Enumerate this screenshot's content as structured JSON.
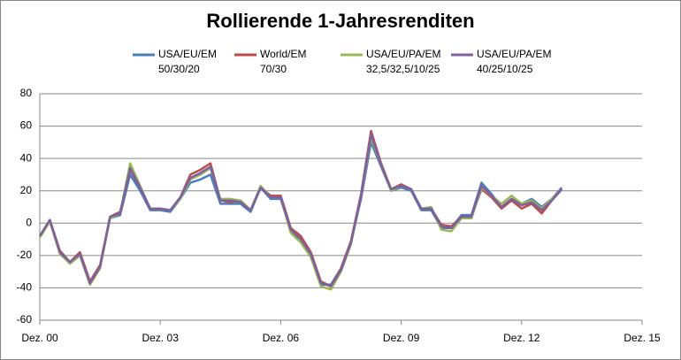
{
  "chart_data": {
    "type": "line",
    "title": "Rollierende 1-Jahresrenditen",
    "categories": [
      "Dez. 00",
      null,
      null,
      null,
      null,
      null,
      null,
      null,
      null,
      null,
      null,
      null,
      "Dez. 03",
      null,
      null,
      null,
      null,
      null,
      null,
      null,
      null,
      null,
      null,
      null,
      "Dez. 06",
      null,
      null,
      null,
      null,
      null,
      null,
      null,
      null,
      null,
      null,
      null,
      "Dez. 09",
      null,
      null,
      null,
      null,
      null,
      null,
      null,
      null,
      null,
      null,
      null,
      "Dez. 12",
      null,
      null,
      null,
      null,
      null,
      null,
      null,
      null,
      null,
      null,
      null,
      "Dez. 15"
    ],
    "series": [
      {
        "name": "USA/EU/EM\n50/30/20",
        "color": "#4a7ebb",
        "values": [
          -8,
          1,
          -18,
          -25,
          -20,
          -38,
          -27,
          3,
          5,
          30,
          20,
          8,
          8,
          7,
          15,
          25,
          27,
          30,
          12,
          12,
          12,
          7,
          22,
          15,
          15,
          -5,
          -10,
          -20,
          -38,
          -38,
          -28,
          -12,
          15,
          50,
          35,
          20,
          22,
          20,
          8,
          8,
          -3,
          -3,
          5,
          5,
          25,
          18,
          10,
          15,
          12,
          15,
          10,
          15,
          22,
          null,
          null,
          null,
          null,
          null,
          null,
          null,
          null
        ]
      },
      {
        "name": "World/EM\n70/30",
        "color": "#be4b48",
        "values": [
          -8,
          2,
          -17,
          -24,
          -18,
          -36,
          -26,
          4,
          7,
          33,
          22,
          9,
          9,
          8,
          16,
          30,
          33,
          37,
          14,
          13,
          14,
          8,
          22,
          17,
          17,
          -3,
          -8,
          -18,
          -36,
          -39,
          -28,
          -11,
          18,
          57,
          37,
          21,
          24,
          21,
          9,
          9,
          -1,
          -2,
          4,
          4,
          21,
          16,
          9,
          14,
          9,
          12,
          6,
          14,
          21,
          null,
          null,
          null,
          null,
          null,
          null,
          null,
          null
        ]
      },
      {
        "name": "USA/EU/PA/EM\n32,5/32,5/10/25",
        "color": "#98b954",
        "values": [
          -9,
          1,
          -19,
          -25,
          -20,
          -38,
          -28,
          3,
          6,
          37,
          23,
          9,
          9,
          8,
          15,
          27,
          30,
          34,
          15,
          15,
          14,
          8,
          23,
          16,
          16,
          -6,
          -12,
          -21,
          -39,
          -41,
          -30,
          -13,
          17,
          53,
          36,
          20,
          23,
          21,
          9,
          10,
          -4,
          -5,
          3,
          3,
          22,
          17,
          12,
          17,
          12,
          14,
          9,
          15,
          21,
          null,
          null,
          null,
          null,
          null,
          null,
          null,
          null
        ]
      },
      {
        "name": "USA/EU/PA/EM\n40/25/10/25",
        "color": "#7d60a0",
        "values": [
          -8,
          2,
          -18,
          -24,
          -19,
          -37,
          -27,
          4,
          6,
          34,
          22,
          9,
          9,
          8,
          16,
          28,
          31,
          35,
          14,
          14,
          13,
          8,
          22,
          16,
          16,
          -4,
          -10,
          -19,
          -37,
          -39,
          -29,
          -12,
          17,
          55,
          36,
          21,
          23,
          21,
          9,
          9,
          -2,
          -3,
          4,
          4,
          23,
          17,
          10,
          15,
          11,
          13,
          8,
          14,
          21,
          null,
          null,
          null,
          null,
          null,
          null,
          null,
          null
        ]
      }
    ],
    "ylim": [
      -60,
      80
    ],
    "yticks": [
      -60,
      -40,
      -20,
      0,
      20,
      40,
      60,
      80
    ],
    "grid": true
  }
}
